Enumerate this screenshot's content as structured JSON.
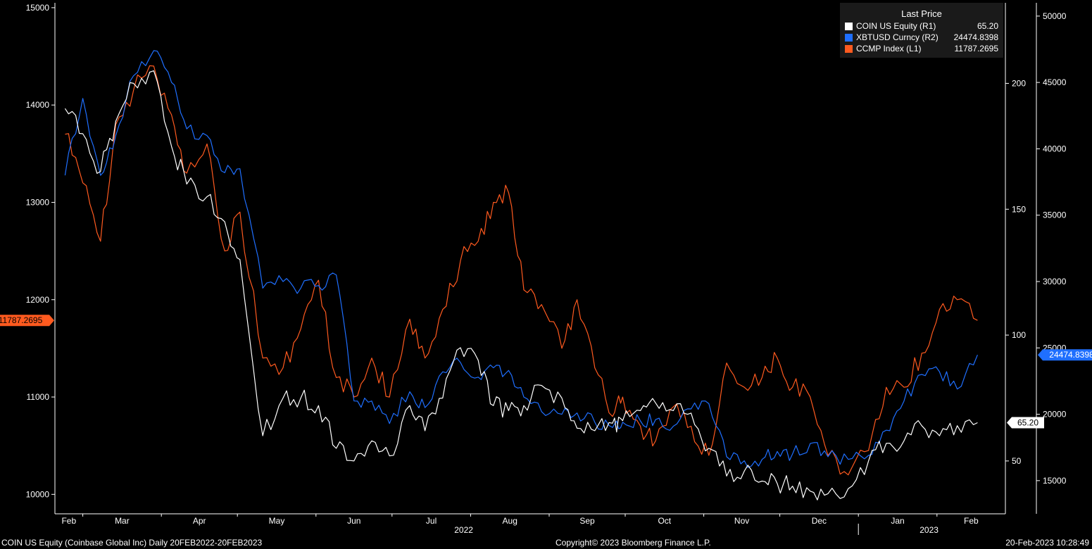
{
  "chart_data": {
    "type": "line",
    "title": "",
    "legend": {
      "title": "Last Price",
      "placement": "top-right",
      "entries": [
        {
          "name": "COIN US Equity",
          "axis": "(R1)",
          "last": "65.20",
          "color": "#ffffff"
        },
        {
          "name": "XBTUSD Curncy",
          "axis": "(R2)",
          "last": "24474.8398",
          "color": "#1f6fff"
        },
        {
          "name": "CCMP Index",
          "axis": "(L1)",
          "last": "11787.2695",
          "color": "#ff5a1f"
        }
      ]
    },
    "x_ticks": [
      "Feb",
      "Mar",
      "Apr",
      "May",
      "Jun",
      "Jul",
      "Aug",
      "Sep",
      "Oct",
      "Nov",
      "Dec",
      "Jan",
      "Feb"
    ],
    "year_labels": [
      "2022",
      "2023"
    ],
    "axes": {
      "L1": {
        "series": "CCMP Index",
        "ylim": [
          9800,
          15050
        ],
        "ticks": [
          10000,
          11000,
          12000,
          13000,
          14000,
          15000
        ]
      },
      "R1": {
        "series": "COIN US Equity",
        "ylim": [
          29,
          232
        ],
        "ticks": [
          50,
          100,
          150,
          200
        ]
      },
      "R2": {
        "series": "XBTUSD Curncy",
        "ylim": [
          12500,
          51000
        ],
        "ticks": [
          "15000",
          "20000",
          "25000",
          "30000",
          "35000",
          "40000",
          "45000",
          "50000"
        ]
      }
    },
    "last_value_flags": {
      "L1": "11787.2695",
      "R1": "65.20",
      "R2": "24474.8398"
    },
    "grid": false,
    "series": [
      {
        "name": "CCMP Index",
        "axis": "L1",
        "color": "#ff5a1f",
        "x": [
          "2022-02-22",
          "2022-03-01",
          "2022-03-08",
          "2022-03-14",
          "2022-03-21",
          "2022-03-29",
          "2022-04-05",
          "2022-04-11",
          "2022-04-19",
          "2022-04-26",
          "2022-05-02",
          "2022-05-11",
          "2022-05-19",
          "2022-05-26",
          "2022-06-02",
          "2022-06-09",
          "2022-06-16",
          "2022-06-23",
          "2022-06-30",
          "2022-07-08",
          "2022-07-14",
          "2022-07-21",
          "2022-07-28",
          "2022-08-04",
          "2022-08-10",
          "2022-08-16",
          "2022-08-22",
          "2022-08-29",
          "2022-09-06",
          "2022-09-12",
          "2022-09-19",
          "2022-09-26",
          "2022-09-30",
          "2022-10-07",
          "2022-10-13",
          "2022-10-20",
          "2022-10-27",
          "2022-11-03",
          "2022-11-10",
          "2022-11-17",
          "2022-11-24",
          "2022-11-30",
          "2022-12-06",
          "2022-12-13",
          "2022-12-20",
          "2022-12-28",
          "2023-01-05",
          "2023-01-12",
          "2023-01-19",
          "2023-01-26",
          "2023-02-02",
          "2023-02-09",
          "2023-02-17"
        ],
        "values": [
          13700,
          13200,
          12600,
          13800,
          14150,
          14400,
          13900,
          13300,
          13600,
          12500,
          12900,
          11400,
          11300,
          11700,
          12200,
          11200,
          11000,
          11400,
          11000,
          11800,
          11400,
          11900,
          12400,
          12600,
          13000,
          13100,
          12100,
          11950,
          11500,
          12000,
          11300,
          10800,
          11000,
          10700,
          10550,
          10900,
          10700,
          10400,
          11350,
          11100,
          11200,
          11400,
          11100,
          11000,
          10400,
          10200,
          10450,
          11100,
          11100,
          11450,
          11900,
          12000,
          11787.2695
        ]
      },
      {
        "name": "COIN US Equity",
        "axis": "R1",
        "color": "#ffffff",
        "x": [
          "2022-02-22",
          "2022-03-01",
          "2022-03-08",
          "2022-03-14",
          "2022-03-21",
          "2022-03-29",
          "2022-04-05",
          "2022-04-11",
          "2022-04-19",
          "2022-04-26",
          "2022-05-02",
          "2022-05-11",
          "2022-05-19",
          "2022-05-26",
          "2022-06-02",
          "2022-06-09",
          "2022-06-16",
          "2022-06-23",
          "2022-06-30",
          "2022-07-08",
          "2022-07-14",
          "2022-07-21",
          "2022-07-28",
          "2022-08-04",
          "2022-08-10",
          "2022-08-16",
          "2022-08-22",
          "2022-08-29",
          "2022-09-06",
          "2022-09-12",
          "2022-09-19",
          "2022-09-26",
          "2022-09-30",
          "2022-10-07",
          "2022-10-13",
          "2022-10-20",
          "2022-10-27",
          "2022-11-03",
          "2022-11-10",
          "2022-11-17",
          "2022-11-24",
          "2022-11-30",
          "2022-12-06",
          "2022-12-13",
          "2022-12-20",
          "2022-12-28",
          "2023-01-05",
          "2023-01-12",
          "2023-01-19",
          "2023-01-26",
          "2023-02-02",
          "2023-02-09",
          "2023-02-17"
        ],
        "values": [
          190,
          180,
          165,
          185,
          200,
          205,
          175,
          160,
          155,
          145,
          130,
          60,
          75,
          75,
          72,
          55,
          50,
          58,
          52,
          72,
          62,
          75,
          95,
          90,
          72,
          70,
          72,
          80,
          75,
          63,
          62,
          65,
          66,
          70,
          73,
          70,
          69,
          55,
          44,
          46,
          42,
          41,
          40,
          38,
          37,
          39,
          50,
          57,
          58,
          64,
          60,
          64,
          65.2
        ]
      },
      {
        "name": "XBTUSD Curncy",
        "axis": "R2",
        "color": "#1f6fff",
        "x": [
          "2022-02-22",
          "2022-03-01",
          "2022-03-08",
          "2022-03-14",
          "2022-03-21",
          "2022-03-29",
          "2022-04-05",
          "2022-04-11",
          "2022-04-19",
          "2022-04-26",
          "2022-05-02",
          "2022-05-11",
          "2022-05-19",
          "2022-05-26",
          "2022-06-02",
          "2022-06-09",
          "2022-06-16",
          "2022-06-23",
          "2022-06-30",
          "2022-07-08",
          "2022-07-14",
          "2022-07-21",
          "2022-07-28",
          "2022-08-04",
          "2022-08-10",
          "2022-08-16",
          "2022-08-22",
          "2022-08-29",
          "2022-09-06",
          "2022-09-12",
          "2022-09-19",
          "2022-09-26",
          "2022-09-30",
          "2022-10-07",
          "2022-10-13",
          "2022-10-20",
          "2022-10-27",
          "2022-11-03",
          "2022-11-10",
          "2022-11-17",
          "2022-11-24",
          "2022-11-30",
          "2022-12-06",
          "2022-12-13",
          "2022-12-20",
          "2022-12-28",
          "2023-01-05",
          "2023-01-12",
          "2023-01-19",
          "2023-01-26",
          "2023-02-02",
          "2023-02-09",
          "2023-02-17"
        ],
        "values": [
          38000,
          43800,
          38000,
          41000,
          45500,
          47400,
          45000,
          41500,
          41000,
          38200,
          38500,
          29500,
          30000,
          29500,
          29700,
          30500,
          21000,
          21000,
          19300,
          21700,
          20500,
          23200,
          23900,
          22800,
          23500,
          23300,
          21300,
          20200,
          20000,
          20100,
          19400,
          19000,
          19400,
          19500,
          19600,
          19100,
          20400,
          20800,
          16800,
          16500,
          16600,
          17200,
          17000,
          17800,
          16800,
          16600,
          16900,
          18800,
          21000,
          23000,
          23200,
          21900,
          24474.8398
        ]
      }
    ]
  },
  "footer": {
    "left": "COIN US Equity (Coinbase Global Inc)  Daily 20FEB2022-20FEB2023",
    "center": "Copyright© 2023 Bloomberg Finance L.P.",
    "right": "20-Feb-2023 10:28:49"
  }
}
